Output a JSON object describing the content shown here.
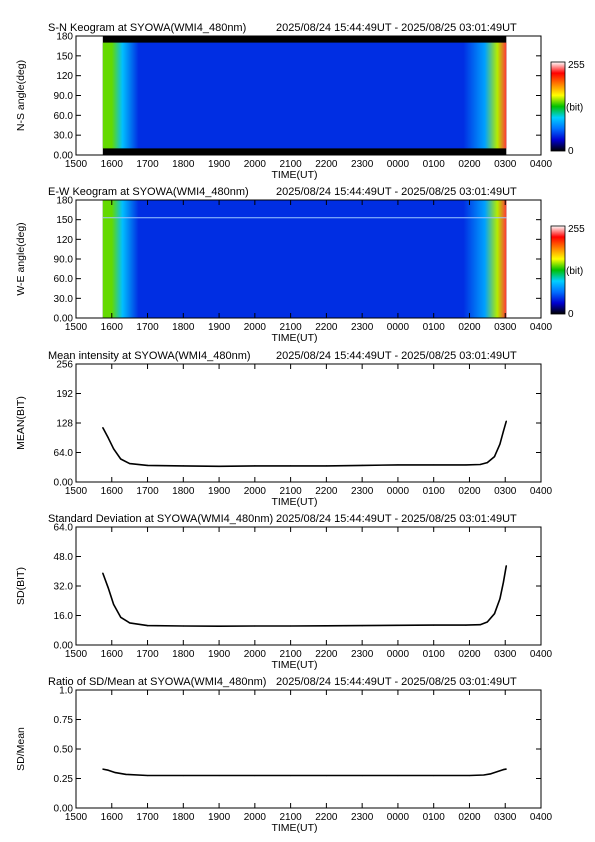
{
  "station": "SYOWA",
  "instrument": "WMI4_480nm",
  "time_range": "2025/08/24 15:44:49UT - 2025/08/25 03:01:49UT",
  "colors": {
    "background": "#ffffff",
    "axis": "#000000",
    "line": "#000000",
    "night_sky": "#0033e6",
    "data_gap": "#000000"
  },
  "colorbar": {
    "ticks": [
      "255",
      "(bit)",
      "0"
    ],
    "range": [
      0,
      255
    ],
    "colormap": [
      "#000000",
      "#0000d0",
      "#0070ff",
      "#00d0ff",
      "#00c000",
      "#ffff00",
      "#ff8000",
      "#ff0000",
      "#ffffff"
    ]
  },
  "chart_data": [
    {
      "type": "heatmap",
      "title": "S-N Keogram at SYOWA(WMI4_480nm)",
      "xlabel": "TIME(UT)",
      "ylabel": "N-S angle(deg)",
      "xlim": [
        15.0,
        28.0
      ],
      "ylim": [
        0,
        180
      ],
      "xticks": [
        "1500",
        "1600",
        "1700",
        "1800",
        "1900",
        "2000",
        "2100",
        "2200",
        "2300",
        "0000",
        "0100",
        "0200",
        "0300",
        "0400"
      ],
      "yticks": [
        "0.00",
        "30.0",
        "60.0",
        "90.0",
        "120",
        "150",
        "180"
      ],
      "data_start": 15.75,
      "data_end": 27.03,
      "valid_angle_range": [
        10,
        170
      ],
      "edge_intensity_bit": {
        "start": 140,
        "end": 230,
        "night": 45
      },
      "horizontal_line_deg": null
    },
    {
      "type": "heatmap",
      "title": "E-W Keogram at SYOWA(WMI4_480nm)",
      "xlabel": "TIME(UT)",
      "ylabel": "W-E angle(deg)",
      "xlim": [
        15.0,
        28.0
      ],
      "ylim": [
        0,
        180
      ],
      "xticks": [
        "1500",
        "1600",
        "1700",
        "1800",
        "1900",
        "2000",
        "2100",
        "2200",
        "2300",
        "0000",
        "0100",
        "0200",
        "0300",
        "0400"
      ],
      "yticks": [
        "0.00",
        "30.0",
        "60.0",
        "90.0",
        "120",
        "150",
        "180"
      ],
      "data_start": 15.75,
      "data_end": 27.03,
      "valid_angle_range": [
        0,
        180
      ],
      "edge_intensity_bit": {
        "start": 140,
        "end": 230,
        "night": 45
      },
      "horizontal_line_deg": 153
    },
    {
      "type": "line",
      "title": "Mean intensity at SYOWA(WMI4_480nm)",
      "xlabel": "TIME(UT)",
      "ylabel": "MEAN(BIT)",
      "xlim": [
        15.0,
        28.0
      ],
      "ylim": [
        0,
        256
      ],
      "xticks": [
        "1500",
        "1600",
        "1700",
        "1800",
        "1900",
        "2000",
        "2100",
        "2200",
        "2300",
        "0000",
        "0100",
        "0200",
        "0300",
        "0400"
      ],
      "yticks": [
        "0.00",
        "64.0",
        "128",
        "192",
        "256"
      ],
      "x": [
        15.75,
        15.9,
        16.05,
        16.25,
        16.5,
        17.0,
        18.0,
        19.0,
        20.0,
        21.0,
        22.0,
        23.0,
        24.0,
        25.0,
        25.9,
        26.3,
        26.5,
        26.7,
        26.85,
        26.95,
        27.03
      ],
      "values": [
        118,
        96,
        72,
        50,
        40,
        36,
        35,
        34,
        35,
        35,
        35,
        36,
        37,
        37,
        37,
        38,
        42,
        55,
        82,
        110,
        132
      ]
    },
    {
      "type": "line",
      "title": "Standard Deviation at SYOWA(WMI4_480nm)",
      "xlabel": "TIME(UT)",
      "ylabel": "SD(BIT)",
      "xlim": [
        15.0,
        28.0
      ],
      "ylim": [
        0,
        64
      ],
      "xticks": [
        "1500",
        "1600",
        "1700",
        "1800",
        "1900",
        "2000",
        "2100",
        "2200",
        "2300",
        "0000",
        "0100",
        "0200",
        "0300",
        "0400"
      ],
      "yticks": [
        "0.00",
        "16.0",
        "32.0",
        "48.0",
        "64.0"
      ],
      "x": [
        15.75,
        15.9,
        16.05,
        16.25,
        16.5,
        17.0,
        18.0,
        19.0,
        20.0,
        21.0,
        22.0,
        23.0,
        24.0,
        25.0,
        25.9,
        26.3,
        26.5,
        26.7,
        26.85,
        26.95,
        27.03
      ],
      "values": [
        39,
        31,
        22,
        15,
        12,
        10.5,
        10.3,
        10.2,
        10.3,
        10.3,
        10.4,
        10.5,
        10.7,
        10.8,
        10.8,
        11,
        12.5,
        17,
        25,
        34,
        43
      ]
    },
    {
      "type": "line",
      "title": "Ratio of SD/Mean at SYOWA(WMI4_480nm)",
      "xlabel": "TIME(UT)",
      "ylabel": "SD/Mean",
      "xlim": [
        15.0,
        28.0
      ],
      "ylim": [
        0,
        1.0
      ],
      "xticks": [
        "1500",
        "1600",
        "1700",
        "1800",
        "1900",
        "2000",
        "2100",
        "2200",
        "2300",
        "0000",
        "0100",
        "0200",
        "0300",
        "0400"
      ],
      "yticks": [
        "0.00",
        "0.25",
        "0.50",
        "0.75",
        "1.0"
      ],
      "x": [
        15.75,
        15.9,
        16.1,
        16.4,
        17.0,
        18.0,
        19.0,
        20.0,
        21.0,
        22.0,
        23.0,
        24.0,
        25.0,
        26.0,
        26.4,
        26.6,
        26.8,
        26.95,
        27.03
      ],
      "values": [
        0.33,
        0.32,
        0.3,
        0.285,
        0.275,
        0.275,
        0.275,
        0.275,
        0.275,
        0.275,
        0.275,
        0.275,
        0.275,
        0.275,
        0.28,
        0.29,
        0.31,
        0.325,
        0.33
      ]
    }
  ]
}
